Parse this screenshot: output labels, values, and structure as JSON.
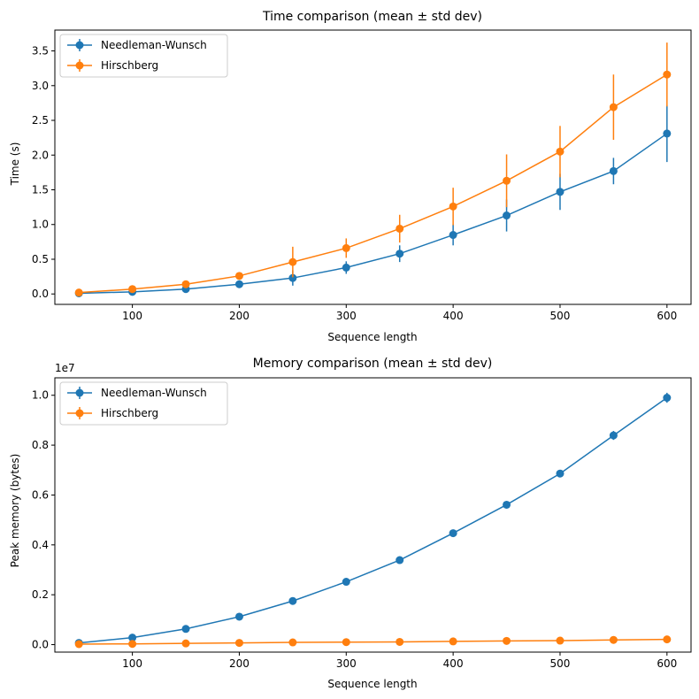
{
  "chart_data": [
    {
      "type": "line",
      "title": "Time comparison (mean ± std dev)",
      "xlabel": "Sequence length",
      "ylabel": "Time (s)",
      "xlim": [
        27.5,
        622.5
      ],
      "ylim": [
        -0.15,
        3.8
      ],
      "x_ticks": [
        100,
        200,
        300,
        400,
        500,
        600
      ],
      "x_tick_labels": [
        "100",
        "200",
        "300",
        "400",
        "500",
        "600"
      ],
      "y_ticks": [
        0,
        0.5,
        1,
        1.5,
        2,
        2.5,
        3,
        3.5
      ],
      "y_tick_labels": [
        "0.0",
        "0.5",
        "1.0",
        "1.5",
        "2.0",
        "2.5",
        "3.0",
        "3.5"
      ],
      "offset_text": "",
      "legend_position": "top-left",
      "grid": false,
      "x": [
        50,
        100,
        150,
        200,
        250,
        300,
        350,
        400,
        450,
        500,
        550,
        600
      ],
      "series": [
        {
          "name": "Needleman-Wunsch",
          "color": "#1f77b4",
          "values": [
            0.01,
            0.03,
            0.07,
            0.14,
            0.23,
            0.38,
            0.58,
            0.85,
            1.13,
            1.47,
            1.77,
            2.31
          ],
          "errors": [
            0.01,
            0.02,
            0.03,
            0.04,
            0.11,
            0.09,
            0.12,
            0.15,
            0.23,
            0.26,
            0.19,
            0.41
          ]
        },
        {
          "name": "Hirschberg",
          "color": "#ff7f0e",
          "values": [
            0.02,
            0.07,
            0.14,
            0.26,
            0.46,
            0.66,
            0.94,
            1.26,
            1.63,
            2.05,
            2.69,
            3.16
          ],
          "errors": [
            0.01,
            0.02,
            0.03,
            0.04,
            0.22,
            0.14,
            0.2,
            0.27,
            0.38,
            0.37,
            0.47,
            0.46
          ]
        }
      ]
    },
    {
      "type": "line",
      "title": "Memory comparison (mean ± std dev)",
      "xlabel": "Sequence length",
      "ylabel": "Peak memory (bytes)",
      "xlim": [
        27.5,
        622.5
      ],
      "ylim": [
        -300000,
        10700000
      ],
      "x_ticks": [
        100,
        200,
        300,
        400,
        500,
        600
      ],
      "x_tick_labels": [
        "100",
        "200",
        "300",
        "400",
        "500",
        "600"
      ],
      "y_ticks": [
        0,
        2000000,
        4000000,
        6000000,
        8000000,
        10000000
      ],
      "y_tick_labels": [
        "0.0",
        "0.2",
        "0.4",
        "0.6",
        "0.8",
        "1.0"
      ],
      "offset_text": "1e7",
      "legend_position": "top-left",
      "grid": false,
      "x": [
        50,
        100,
        150,
        200,
        250,
        300,
        350,
        400,
        450,
        500,
        550,
        600
      ],
      "series": [
        {
          "name": "Needleman-Wunsch",
          "color": "#1f77b4",
          "values": [
            70000,
            280000,
            630000,
            1120000,
            1750000,
            2520000,
            3390000,
            4470000,
            5610000,
            6860000,
            8390000,
            9900000
          ],
          "errors": [
            20000,
            30000,
            40000,
            50000,
            60000,
            70000,
            80000,
            90000,
            120000,
            150000,
            180000,
            200000
          ]
        },
        {
          "name": "Hirschberg",
          "color": "#ff7f0e",
          "values": [
            20000,
            30000,
            50000,
            70000,
            90000,
            100000,
            110000,
            130000,
            150000,
            160000,
            190000,
            210000
          ],
          "errors": [
            5000,
            5000,
            5000,
            5000,
            5000,
            5000,
            5000,
            5000,
            5000,
            5000,
            5000,
            5000
          ]
        }
      ]
    }
  ]
}
